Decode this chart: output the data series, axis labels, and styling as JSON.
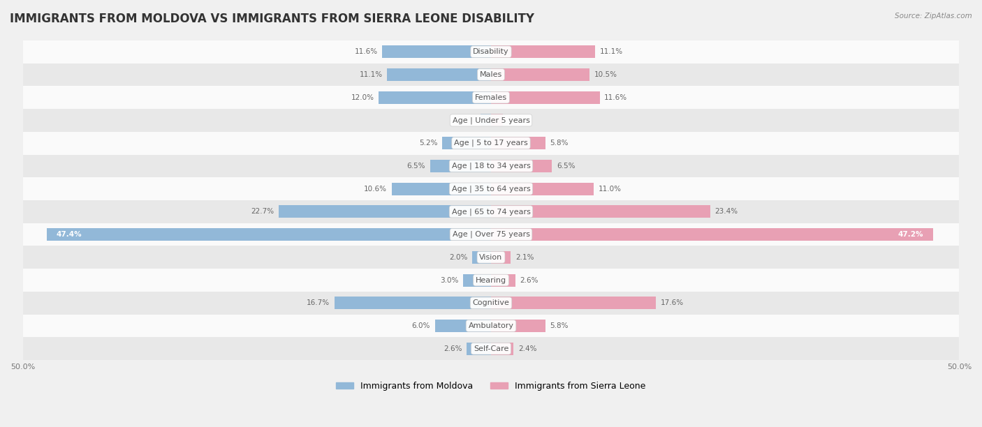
{
  "title": "IMMIGRANTS FROM MOLDOVA VS IMMIGRANTS FROM SIERRA LEONE DISABILITY",
  "source": "Source: ZipAtlas.com",
  "categories": [
    "Disability",
    "Males",
    "Females",
    "Age | Under 5 years",
    "Age | 5 to 17 years",
    "Age | 18 to 34 years",
    "Age | 35 to 64 years",
    "Age | 65 to 74 years",
    "Age | Over 75 years",
    "Vision",
    "Hearing",
    "Cognitive",
    "Ambulatory",
    "Self-Care"
  ],
  "moldova_values": [
    11.6,
    11.1,
    12.0,
    1.1,
    5.2,
    6.5,
    10.6,
    22.7,
    47.4,
    2.0,
    3.0,
    16.7,
    6.0,
    2.6
  ],
  "sierraleone_values": [
    11.1,
    10.5,
    11.6,
    1.3,
    5.8,
    6.5,
    11.0,
    23.4,
    47.2,
    2.1,
    2.6,
    17.6,
    5.8,
    2.4
  ],
  "moldova_color": "#92b8d8",
  "sierraleone_color": "#e8a0b4",
  "moldova_label": "Immigrants from Moldova",
  "sierraleone_label": "Immigrants from Sierra Leone",
  "axis_limit": 50.0,
  "background_color": "#f0f0f0",
  "row_color_light": "#fafafa",
  "row_color_dark": "#e8e8e8",
  "title_fontsize": 12,
  "label_fontsize": 8,
  "value_fontsize": 7.5,
  "legend_fontsize": 9,
  "bar_height": 0.55
}
